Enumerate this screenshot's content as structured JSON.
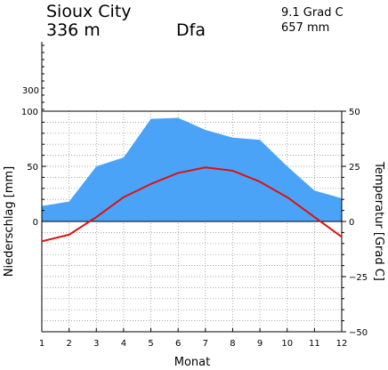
{
  "header": {
    "station": "Sioux City",
    "elevation": "336 m",
    "climate_class": "Dfa",
    "mean_temp": "9.1 Grad C",
    "annual_precip": "657 mm"
  },
  "colors": {
    "precip_fill": "#4aa3f7",
    "temp_line": "#dd1111",
    "grid": "#888888",
    "axis": "#000000"
  },
  "chart_data": {
    "type": "area",
    "x": [
      1,
      2,
      3,
      4,
      5,
      6,
      7,
      8,
      9,
      10,
      11,
      12
    ],
    "xlabel": "Monat",
    "ylabel_left": "Niederschlag [mm]",
    "ylabel_right": "Temperatur [Grad C]",
    "left_ticks": [
      "100",
      "50",
      "0"
    ],
    "left_extended_ticks": [
      "300"
    ],
    "right_ticks": [
      "50",
      "25",
      "0",
      "−25",
      "−50"
    ],
    "precip_ylim": [
      -100,
      100
    ],
    "temp_ylim": [
      -50,
      50
    ],
    "grid": true,
    "series": [
      {
        "kind": "precipitation",
        "unit": "mm",
        "values": [
          14,
          18,
          50,
          58,
          93,
          94,
          83,
          76,
          74,
          50,
          28,
          21
        ]
      },
      {
        "kind": "temperature",
        "unit": "Grad C",
        "values": [
          -9,
          -6,
          2,
          11,
          17,
          22,
          24.5,
          23,
          18,
          11,
          2,
          -7
        ]
      }
    ]
  }
}
